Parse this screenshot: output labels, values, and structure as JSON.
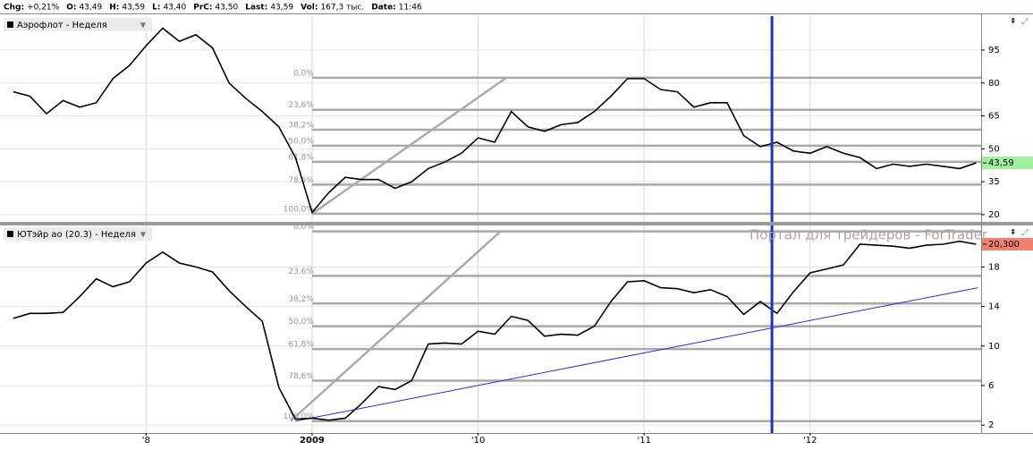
{
  "header": [
    {
      "key": "Chg:",
      "value": "+0,21%"
    },
    {
      "key": "O:",
      "value": "43,49"
    },
    {
      "key": "H:",
      "value": "43,59"
    },
    {
      "key": "L:",
      "value": "43,40"
    },
    {
      "key": "PrC:",
      "value": "43,50"
    },
    {
      "key": "Last:",
      "value": "43,59"
    },
    {
      "key": "Vol:",
      "value": "167,3 тыс."
    },
    {
      "key": "Date:",
      "value": "11:46"
    }
  ],
  "watermark": "Портал для трейдеров - ForTrader",
  "chart_data": [
    {
      "type": "line",
      "grid": true,
      "xlim": [
        2007.12,
        2013.03
      ],
      "ylim": [
        16.7,
        110.5
      ],
      "yticks": [
        20,
        35,
        50,
        65,
        80,
        95
      ],
      "x": [
        2007.2,
        2007.3,
        2007.4,
        2007.5,
        2007.6,
        2007.7,
        2007.8,
        2007.9,
        2008.0,
        2008.1,
        2008.2,
        2008.3,
        2008.4,
        2008.5,
        2008.6,
        2008.7,
        2008.8,
        2008.9,
        2009.0,
        2009.1,
        2009.2,
        2009.3,
        2009.4,
        2009.5,
        2009.6,
        2009.7,
        2009.8,
        2009.9,
        2010.0,
        2010.1,
        2010.2,
        2010.3,
        2010.4,
        2010.5,
        2010.6,
        2010.7,
        2010.8,
        2010.9,
        2011.0,
        2011.1,
        2011.2,
        2011.3,
        2011.4,
        2011.5,
        2011.6,
        2011.7,
        2011.8,
        2011.9,
        2012.0,
        2012.1,
        2012.2,
        2012.3,
        2012.4,
        2012.5,
        2012.6,
        2012.7,
        2012.8,
        2012.9,
        2013.0
      ],
      "series": [
        {
          "name": "Аэрофлот - Неделя",
          "color": "#000000",
          "values": [
            76,
            74,
            66,
            72,
            69,
            71,
            82,
            88,
            97,
            105,
            99,
            102,
            96,
            80,
            73,
            67,
            60,
            46,
            21,
            30,
            37,
            36,
            36,
            32,
            35,
            41,
            44,
            48,
            55,
            53,
            67,
            60,
            58,
            61,
            62,
            67,
            74,
            82,
            82,
            77,
            76,
            69,
            71,
            71,
            56,
            51,
            53,
            49,
            48,
            51,
            48,
            46,
            41,
            43,
            42,
            43,
            42,
            41,
            43.59
          ]
        }
      ],
      "last": {
        "value": 43.59,
        "label": "43,59",
        "color": "#9ef09e"
      },
      "fib_start": 2009.0,
      "fib": [
        {
          "label": "0,0%",
          "value": 82.4
        },
        {
          "label": "23,6%",
          "value": 67.8
        },
        {
          "label": "38,2%",
          "value": 58.7
        },
        {
          "label": "50,0%",
          "value": 51.4
        },
        {
          "label": "61,8%",
          "value": 44.1
        },
        {
          "label": "78,6%",
          "value": 33.7
        },
        {
          "label": "100,0%",
          "value": 20.4
        }
      ],
      "lines": [
        {
          "color": "#aaaaaa",
          "x": [
            2009.0,
            2010.17
          ],
          "y": [
            20.4,
            82.4
          ]
        }
      ],
      "vline": {
        "value": 2011.77,
        "color": "#1f2fd0"
      }
    },
    {
      "type": "line",
      "grid": true,
      "xlim": [
        2007.12,
        2013.03
      ],
      "ylim": [
        1.2,
        22.2
      ],
      "yticks": [
        2,
        6,
        10,
        14,
        18
      ],
      "xticks": [
        {
          "value": 2008,
          "label": "'8"
        },
        {
          "value": 2009,
          "label": "2009"
        },
        {
          "value": 2010,
          "label": "'10"
        },
        {
          "value": 2011,
          "label": "'11"
        },
        {
          "value": 2012,
          "label": "'12"
        }
      ],
      "x": [
        2007.2,
        2007.3,
        2007.4,
        2007.5,
        2007.6,
        2007.7,
        2007.8,
        2007.9,
        2008.0,
        2008.1,
        2008.2,
        2008.3,
        2008.4,
        2008.5,
        2008.6,
        2008.7,
        2008.8,
        2008.9,
        2009.0,
        2009.1,
        2009.2,
        2009.3,
        2009.4,
        2009.5,
        2009.6,
        2009.7,
        2009.8,
        2009.9,
        2010.0,
        2010.1,
        2010.2,
        2010.3,
        2010.4,
        2010.5,
        2010.6,
        2010.7,
        2010.8,
        2010.9,
        2011.0,
        2011.1,
        2011.2,
        2011.3,
        2011.4,
        2011.5,
        2011.6,
        2011.7,
        2011.8,
        2011.9,
        2012.0,
        2012.1,
        2012.2,
        2012.3,
        2012.4,
        2012.5,
        2012.6,
        2012.7,
        2012.8,
        2012.9,
        2013.0
      ],
      "series": [
        {
          "name": "ЮТэйр ао (20.3) - Неделя",
          "color": "#000000",
          "values": [
            12.8,
            13.3,
            13.3,
            13.4,
            15,
            16.8,
            16,
            16.5,
            18.4,
            19.5,
            18.4,
            18,
            17.5,
            15.6,
            14,
            12.5,
            5.8,
            2.6,
            2.7,
            2.5,
            2.7,
            4.2,
            5.9,
            5.6,
            6.5,
            10.2,
            10.3,
            10.2,
            11.5,
            11.2,
            13,
            12.6,
            11,
            11.2,
            11.1,
            12,
            14.5,
            16.5,
            16.6,
            15.9,
            15.8,
            15.4,
            15.7,
            15,
            13.2,
            14.5,
            13.3,
            15.5,
            17.4,
            17.8,
            18.2,
            20.3,
            20.2,
            20.1,
            19.9,
            20.2,
            20.3,
            20.6,
            20.3
          ]
        }
      ],
      "last": {
        "value": 20.3,
        "label": "20,300",
        "color": "#f08070"
      },
      "fib_start": 2009.0,
      "fib": [
        {
          "label": "0,0%",
          "value": 21.6
        },
        {
          "label": "23,6%",
          "value": 17.1
        },
        {
          "label": "38,2%",
          "value": 14.3
        },
        {
          "label": "50,0%",
          "value": 12.0
        },
        {
          "label": "61,8%",
          "value": 9.7
        },
        {
          "label": "78,6%",
          "value": 6.5
        },
        {
          "label": "100,0%",
          "value": 2.4
        }
      ],
      "lines": [
        {
          "color": "#aaaaaa",
          "x": [
            2008.87,
            2010.135
          ],
          "y": [
            2.4,
            21.6
          ]
        },
        {
          "color": "#2a2ae0",
          "x": [
            2008.9,
            2013.01
          ],
          "y": [
            2.4,
            15.9
          ]
        }
      ],
      "vline": {
        "value": 2011.77,
        "color": "#1f2fd0"
      }
    }
  ]
}
